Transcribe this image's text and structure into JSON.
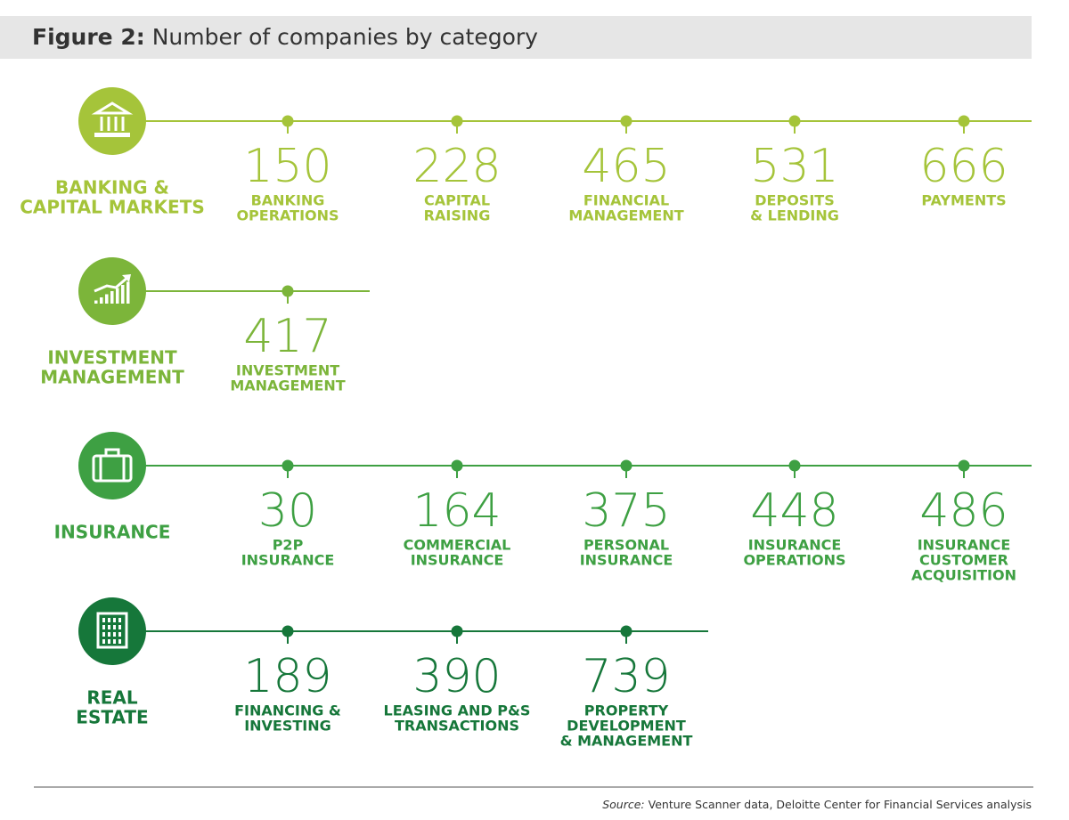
{
  "header": {
    "figure": "Figure 2:",
    "title": "Number of companies by category"
  },
  "groups": [
    {
      "name": [
        "BANKING &",
        "CAPITAL MARKETS"
      ],
      "color": "#a5c43a",
      "items": [
        {
          "value": 150,
          "label": [
            "BANKING",
            "OPERATIONS"
          ]
        },
        {
          "value": 228,
          "label": [
            "CAPITAL",
            "RAISING"
          ]
        },
        {
          "value": 465,
          "label": [
            "FINANCIAL",
            "MANAGEMENT"
          ]
        },
        {
          "value": 531,
          "label": [
            "DEPOSITS",
            "& LENDING"
          ]
        },
        {
          "value": 666,
          "label": [
            "PAYMENTS"
          ]
        }
      ]
    },
    {
      "name": [
        "INVESTMENT",
        "MANAGEMENT"
      ],
      "color": "#7cb53a",
      "items": [
        {
          "value": 417,
          "label": [
            "INVESTMENT",
            "MANAGEMENT"
          ]
        }
      ]
    },
    {
      "name": [
        "INSURANCE"
      ],
      "color": "#3ea043",
      "items": [
        {
          "value": 30,
          "label": [
            "P2P",
            "INSURANCE"
          ]
        },
        {
          "value": 164,
          "label": [
            "COMMERCIAL",
            "INSURANCE"
          ]
        },
        {
          "value": 375,
          "label": [
            "PERSONAL",
            "INSURANCE"
          ]
        },
        {
          "value": 448,
          "label": [
            "INSURANCE",
            "OPERATIONS"
          ]
        },
        {
          "value": 486,
          "label": [
            "INSURANCE",
            "CUSTOMER",
            "ACQUISITION"
          ]
        }
      ]
    },
    {
      "name": [
        "REAL",
        "ESTATE"
      ],
      "color": "#16773a",
      "items": [
        {
          "value": 189,
          "label": [
            "FINANCING &",
            "INVESTING"
          ]
        },
        {
          "value": 390,
          "label": [
            "LEASING AND P&S",
            "TRANSACTIONS"
          ]
        },
        {
          "value": 739,
          "label": [
            "PROPERTY",
            "DEVELOPMENT",
            "& MANAGEMENT"
          ]
        }
      ]
    }
  ],
  "source": {
    "label": "Source:",
    "text": "Venture Scanner data, Deloitte Center for Financial Services analysis"
  }
}
